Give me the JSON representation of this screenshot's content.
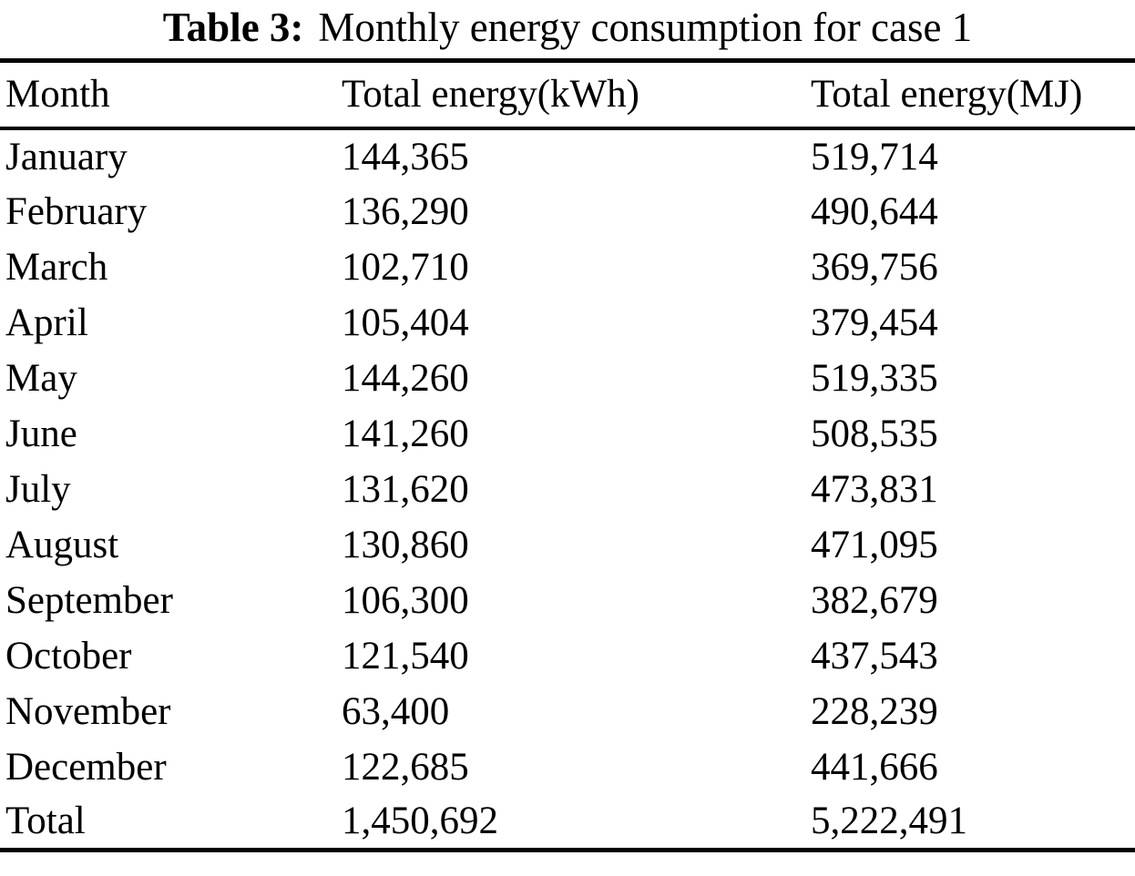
{
  "caption": {
    "label": "Table 3:",
    "text": "Monthly energy consumption for case 1"
  },
  "table": {
    "columns": [
      "Month",
      "Total energy(kWh)",
      "Total energy(MJ)"
    ],
    "rows": [
      [
        "January",
        "144,365",
        "519,714"
      ],
      [
        "February",
        "136,290",
        "490,644"
      ],
      [
        "March",
        "102,710",
        "369,756"
      ],
      [
        "April",
        "105,404",
        "379,454"
      ],
      [
        "May",
        "144,260",
        "519,335"
      ],
      [
        "June",
        "141,260",
        "508,535"
      ],
      [
        "July",
        "131,620",
        "473,831"
      ],
      [
        "August",
        "130,860",
        "471,095"
      ],
      [
        "September",
        "106,300",
        "382,679"
      ],
      [
        "October",
        "121,540",
        "437,543"
      ],
      [
        "November",
        "63,400",
        "228,239"
      ],
      [
        "December",
        "122,685",
        "441,666"
      ],
      [
        "Total",
        "1,450,692",
        "5,222,491"
      ]
    ]
  },
  "colors": {
    "text": "#000000",
    "background": "#ffffff",
    "rule": "#000000"
  }
}
